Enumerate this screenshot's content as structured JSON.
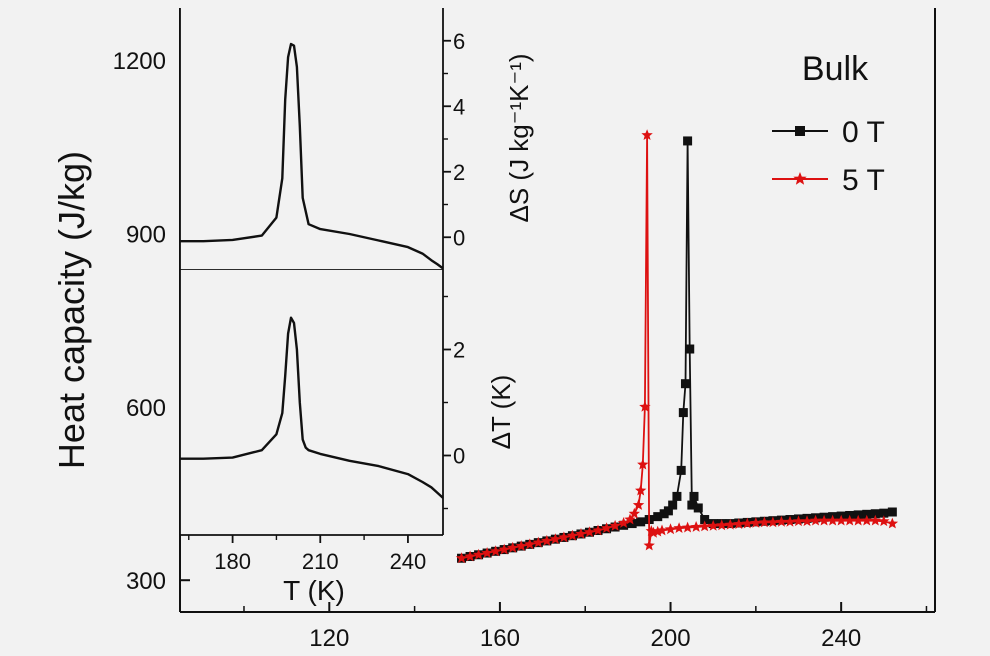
{
  "chart_data": [
    {
      "id": "main",
      "type": "line",
      "title": "Bulk",
      "xlabel": "",
      "ylabel": "Heat capacity (J/kg)",
      "xlim": [
        85,
        262
      ],
      "ylim": [
        245,
        1290
      ],
      "xticks": [
        120,
        160,
        200,
        240
      ],
      "yticks": [
        300,
        600,
        900,
        1200
      ],
      "legend_position": "top-right",
      "colors": {
        "0 T": "#111111",
        "5 T": "#dd1111"
      },
      "series": [
        {
          "name": "0 T",
          "marker": "square",
          "x": [
            151,
            153,
            155,
            157,
            159,
            161,
            163,
            165,
            167,
            169,
            171,
            173,
            175,
            177,
            179,
            181,
            183,
            185,
            187,
            189,
            191,
            193,
            195,
            197,
            198.5,
            199.5,
            200.5,
            201.5,
            202.5,
            203.0,
            203.5,
            204.0,
            204.5,
            205.0,
            205.5,
            206.5,
            208,
            210,
            212,
            214,
            216,
            218,
            220,
            222,
            224,
            226,
            228,
            230,
            232,
            234,
            236,
            238,
            240,
            242,
            244,
            246,
            248,
            250,
            252
          ],
          "y": [
            338,
            341,
            344,
            347,
            350,
            353,
            356,
            359,
            362,
            365,
            368,
            371,
            374,
            377,
            380,
            383,
            386,
            389,
            392,
            395,
            398,
            401,
            405,
            410,
            415,
            420,
            430,
            445,
            490,
            590,
            640,
            1060,
            700,
            430,
            445,
            425,
            405,
            398,
            398,
            398,
            399,
            400,
            401,
            402,
            403,
            404,
            405,
            406,
            407,
            408,
            409,
            410,
            411,
            412,
            413,
            414,
            415,
            416,
            418
          ]
        },
        {
          "name": "5 T",
          "marker": "star",
          "x": [
            151,
            153,
            155,
            157,
            159,
            161,
            163,
            165,
            167,
            169,
            171,
            173,
            175,
            177,
            179,
            181,
            183,
            185,
            187,
            189,
            190.5,
            191.5,
            192.5,
            193.0,
            193.5,
            194.0,
            194.5,
            195.0,
            195.5,
            196.0,
            197,
            198,
            200,
            202,
            204,
            206,
            208,
            210,
            212,
            214,
            216,
            218,
            220,
            222,
            224,
            226,
            228,
            230,
            232,
            234,
            236,
            238,
            240,
            242,
            244,
            246,
            248,
            250,
            252
          ],
          "y": [
            338,
            341,
            344,
            347,
            350,
            353,
            356,
            359,
            362,
            365,
            368,
            371,
            374,
            377,
            380,
            383,
            386,
            390,
            394,
            399,
            405,
            415,
            430,
            455,
            500,
            600,
            1070,
            360,
            385,
            382,
            384,
            386,
            388,
            390,
            391,
            392,
            393,
            394,
            395,
            396,
            397,
            398,
            399,
            400,
            400,
            401,
            401,
            402,
            402,
            403,
            403,
            403,
            403,
            403,
            403,
            403,
            403,
            402,
            398
          ]
        }
      ]
    },
    {
      "id": "inset-top",
      "type": "line",
      "xlabel": "",
      "ylabel": "ΔS (J kg⁻¹K⁻¹)",
      "xlim": [
        162,
        252
      ],
      "ylim": [
        -1,
        7
      ],
      "xticks": [
        180,
        210,
        240
      ],
      "yticks": [
        0,
        2,
        4,
        6
      ],
      "series": [
        {
          "name": "ΔS",
          "x": [
            162,
            170,
            180,
            190,
            195,
            197,
            198,
            199,
            200,
            201,
            202,
            203,
            204,
            206,
            210,
            220,
            230,
            240,
            245,
            248,
            250,
            252
          ],
          "y": [
            -0.12,
            -0.12,
            -0.08,
            0.05,
            0.6,
            1.8,
            4.2,
            5.5,
            5.9,
            5.85,
            5.2,
            3.4,
            1.2,
            0.4,
            0.25,
            0.1,
            -0.1,
            -0.3,
            -0.5,
            -0.7,
            -0.82,
            -0.95
          ]
        }
      ]
    },
    {
      "id": "inset-bottom",
      "type": "line",
      "xlabel": "T (K)",
      "ylabel": "ΔT (K)",
      "xlim": [
        162,
        252
      ],
      "ylim": [
        -1.5,
        3.5
      ],
      "xticks": [
        180,
        210,
        240
      ],
      "yticks": [
        0,
        2
      ],
      "series": [
        {
          "name": "ΔT",
          "x": [
            162,
            170,
            180,
            190,
            195,
            197,
            198,
            199,
            200,
            201,
            202,
            203,
            204,
            205,
            206,
            210,
            220,
            230,
            240,
            245,
            248,
            250,
            252
          ],
          "y": [
            -0.06,
            -0.06,
            -0.04,
            0.1,
            0.4,
            0.8,
            1.5,
            2.3,
            2.6,
            2.5,
            2.0,
            1.0,
            0.3,
            0.15,
            0.1,
            0.03,
            -0.1,
            -0.2,
            -0.35,
            -0.5,
            -0.6,
            -0.7,
            -0.8
          ]
        }
      ]
    }
  ]
}
